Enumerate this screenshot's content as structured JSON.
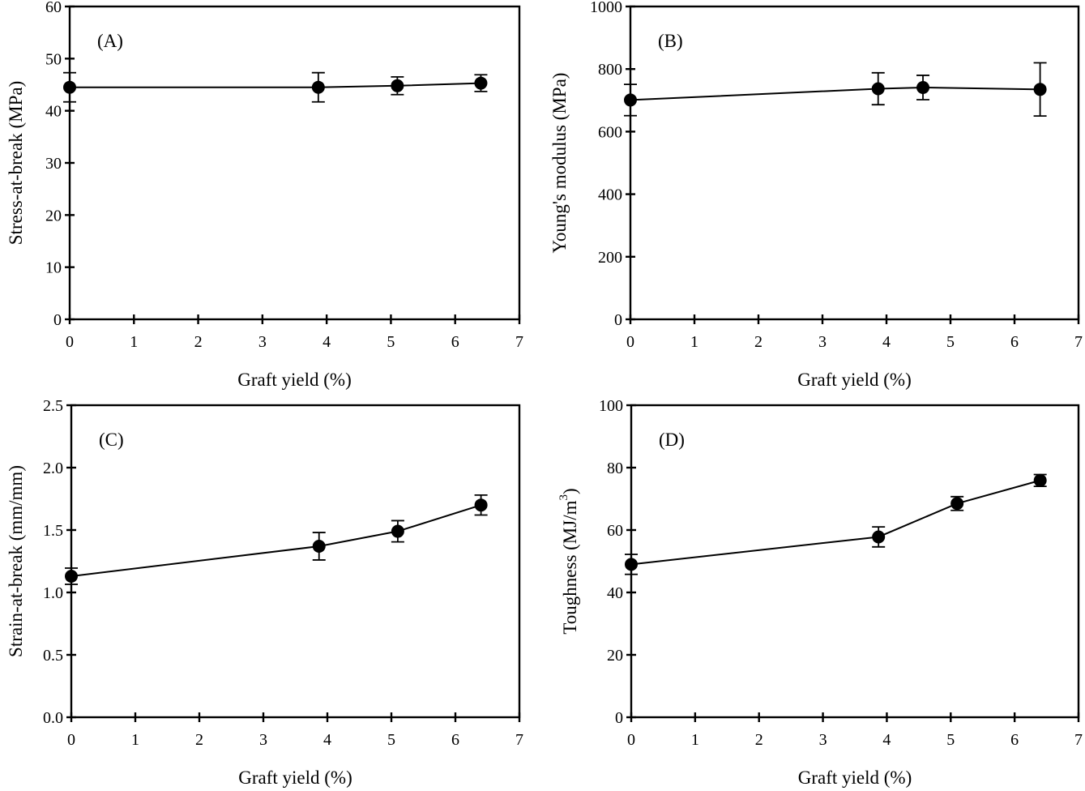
{
  "chart_data": [
    {
      "id": "A",
      "type": "line",
      "panel_label": "(A)",
      "title": "",
      "xlabel": "Graft yield (%)",
      "ylabel": "Stress-at-break (MPa)",
      "ylabel_sup": "",
      "ylabel_suffix": "",
      "xlim": [
        0,
        7
      ],
      "ylim": [
        0,
        60
      ],
      "xticks": [
        0,
        1,
        2,
        3,
        4,
        5,
        6,
        7
      ],
      "xtick_labels": [
        "0",
        "1",
        "2",
        "3",
        "4",
        "5",
        "6",
        "7"
      ],
      "yticks": [
        0,
        10,
        20,
        30,
        40,
        50,
        60
      ],
      "ytick_labels": [
        "0",
        "10",
        "20",
        "30",
        "40",
        "50",
        "60"
      ],
      "grid": false,
      "legend": "none",
      "series": [
        {
          "name": "Stress-at-break",
          "x": [
            0,
            3.87,
            5.1,
            6.4
          ],
          "y": [
            44.5,
            44.5,
            44.8,
            45.3
          ],
          "yerr": [
            2.8,
            2.8,
            1.7,
            1.6
          ]
        }
      ]
    },
    {
      "id": "B",
      "type": "line",
      "panel_label": "(B)",
      "title": "",
      "xlabel": "Graft yield (%)",
      "ylabel": "Young's modulus (MPa)",
      "ylabel_sup": "",
      "ylabel_suffix": "",
      "xlim": [
        0,
        7
      ],
      "ylim": [
        0,
        1000
      ],
      "xticks": [
        0,
        1,
        2,
        3,
        4,
        5,
        6,
        7
      ],
      "xtick_labels": [
        "0",
        "1",
        "2",
        "3",
        "4",
        "5",
        "6",
        "7"
      ],
      "yticks": [
        0,
        200,
        400,
        600,
        800,
        1000
      ],
      "ytick_labels": [
        "0",
        "200",
        "400",
        "600",
        "800",
        "1000"
      ],
      "grid": false,
      "legend": "none",
      "series": [
        {
          "name": "Young's modulus",
          "x": [
            0,
            3.87,
            4.57,
            6.4
          ],
          "y": [
            701,
            737,
            741,
            735
          ],
          "yerr": [
            50,
            51,
            39,
            85
          ]
        }
      ]
    },
    {
      "id": "C",
      "type": "line",
      "panel_label": "(C)",
      "title": "",
      "xlabel": "Graft yield (%)",
      "ylabel": "Strain-at-break (mm/mm)",
      "ylabel_sup": "",
      "ylabel_suffix": "",
      "xlim": [
        0,
        7
      ],
      "ylim": [
        0,
        2.5
      ],
      "xticks": [
        0,
        1,
        2,
        3,
        4,
        5,
        6,
        7
      ],
      "xtick_labels": [
        "0",
        "1",
        "2",
        "3",
        "4",
        "5",
        "6",
        "7"
      ],
      "yticks": [
        0,
        0.5,
        1.0,
        1.5,
        2.0,
        2.5
      ],
      "ytick_labels": [
        "0.0",
        "0.5",
        "1.0",
        "1.5",
        "2.0",
        "2.5"
      ],
      "grid": false,
      "legend": "none",
      "series": [
        {
          "name": "Strain-at-break",
          "x": [
            0,
            3.87,
            5.1,
            6.4
          ],
          "y": [
            1.13,
            1.37,
            1.49,
            1.7
          ],
          "yerr": [
            0.065,
            0.11,
            0.085,
            0.08
          ]
        }
      ]
    },
    {
      "id": "D",
      "type": "line",
      "panel_label": "(D)",
      "title": "",
      "xlabel": "Graft yield (%)",
      "ylabel": "Toughness (MJ/m",
      "ylabel_sup": "3",
      "ylabel_suffix": ")",
      "xlim": [
        0,
        7
      ],
      "ylim": [
        0,
        100
      ],
      "xticks": [
        0,
        1,
        2,
        3,
        4,
        5,
        6,
        7
      ],
      "xtick_labels": [
        "0",
        "1",
        "2",
        "3",
        "4",
        "5",
        "6",
        "7"
      ],
      "yticks": [
        0,
        20,
        40,
        60,
        80,
        100
      ],
      "ytick_labels": [
        "0",
        "20",
        "40",
        "60",
        "80",
        "100"
      ],
      "grid": false,
      "legend": "none",
      "series": [
        {
          "name": "Toughness",
          "x": [
            0,
            3.87,
            5.1,
            6.4
          ],
          "y": [
            49,
            57.8,
            68.5,
            75.9
          ],
          "yerr": [
            3.2,
            3.2,
            2.2,
            1.9
          ]
        }
      ]
    }
  ]
}
